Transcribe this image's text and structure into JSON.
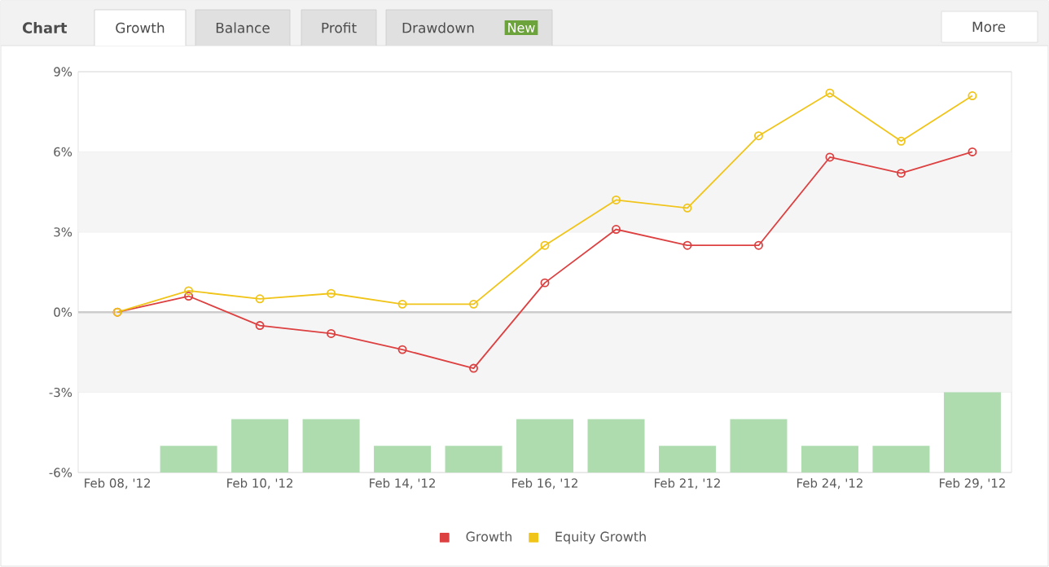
{
  "chart_data": {
    "type": "line",
    "title": "Chart",
    "annotations": [
      "Growth",
      "Balance",
      "Profit",
      "Drawdown",
      "New",
      "More"
    ],
    "categories": [
      "Feb 08, '12",
      null,
      "Feb 10, '12",
      null,
      "Feb 14, '12",
      null,
      "Feb 16, '12",
      null,
      "Feb 21, '12",
      null,
      "Feb 24, '12",
      null,
      "Feb 29, '12"
    ],
    "series": [
      {
        "type": "bar",
        "color": "#aedcaf",
        "base": [
          null,
          -6,
          -6,
          -6,
          -6,
          -6,
          -6,
          -6,
          -6,
          -6,
          -6,
          -6,
          -6
        ],
        "values": [
          null,
          1,
          2,
          2,
          1,
          1,
          2,
          2,
          1,
          2,
          1,
          1,
          3
        ]
      },
      {
        "name": "Growth",
        "color": "#dd4040",
        "values": [
          0,
          0.6,
          -0.5,
          -0.8,
          -1.4,
          -2.1,
          1.1,
          3.1,
          2.5,
          2.5,
          5.8,
          5.2,
          6.0
        ]
      },
      {
        "name": "Equity Growth",
        "color": "#f0c419",
        "values": [
          0,
          0.8,
          0.5,
          0.7,
          0.3,
          0.3,
          2.5,
          4.2,
          3.9,
          6.6,
          8.2,
          6.4,
          8.1
        ]
      }
    ],
    "ylim": [
      -6,
      9
    ],
    "yticks": [
      {
        "value": -6,
        "label": "-6%"
      },
      {
        "value": -3,
        "label": "-3%"
      },
      {
        "value": 0,
        "label": "0%"
      },
      {
        "value": 3,
        "label": "3%"
      },
      {
        "value": 6,
        "label": "6%"
      },
      {
        "value": 9,
        "label": "9%"
      }
    ],
    "bands": [
      {
        "axis": "y",
        "from": 3,
        "to": 6,
        "color": "#f5f5f5"
      },
      {
        "axis": "y",
        "from": -3,
        "to": 0,
        "color": "#f5f5f5"
      }
    ],
    "ref_lines": [
      {
        "axis": "y",
        "value": 0,
        "color": "#cccccc"
      }
    ],
    "grid": "y",
    "legend": "bottom",
    "marker": "circle",
    "line_style": "solid"
  }
}
